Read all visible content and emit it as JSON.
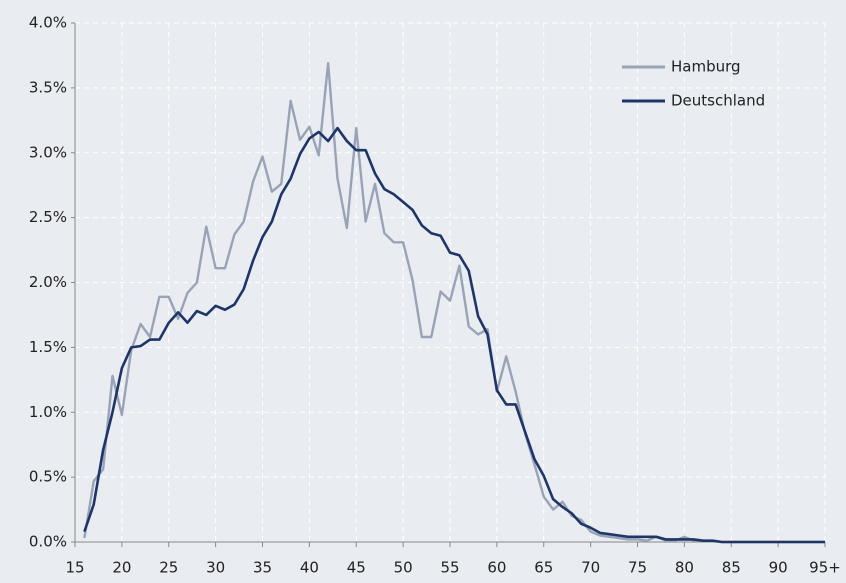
{
  "chart_data": {
    "type": "line",
    "x": [
      16,
      17,
      18,
      19,
      20,
      21,
      22,
      23,
      24,
      25,
      26,
      27,
      28,
      29,
      30,
      31,
      32,
      33,
      34,
      35,
      36,
      37,
      38,
      39,
      40,
      41,
      42,
      43,
      44,
      45,
      46,
      47,
      48,
      49,
      50,
      51,
      52,
      53,
      54,
      55,
      56,
      57,
      58,
      59,
      60,
      61,
      62,
      63,
      64,
      65,
      66,
      67,
      68,
      69,
      70,
      71,
      72,
      73,
      74,
      75,
      76,
      77,
      78,
      79,
      80,
      81,
      82,
      83,
      84,
      85,
      86,
      87,
      88,
      89,
      90,
      91,
      92,
      93,
      94,
      95
    ],
    "series": [
      {
        "name": "Hamburg",
        "color": "#9aa3b6",
        "values": [
          0.03,
          0.47,
          0.56,
          1.28,
          0.98,
          1.48,
          1.68,
          1.58,
          1.89,
          1.89,
          1.72,
          1.92,
          2.0,
          2.43,
          2.11,
          2.11,
          2.37,
          2.47,
          2.78,
          2.97,
          2.7,
          2.76,
          3.4,
          3.1,
          3.2,
          2.98,
          3.69,
          2.8,
          2.42,
          3.19,
          2.47,
          2.76,
          2.38,
          2.31,
          2.31,
          2.02,
          1.58,
          1.58,
          1.93,
          1.86,
          2.13,
          1.66,
          1.6,
          1.64,
          1.16,
          1.43,
          1.16,
          0.84,
          0.6,
          0.35,
          0.25,
          0.31,
          0.2,
          0.17,
          0.08,
          0.05,
          0.04,
          0.03,
          0.02,
          0.02,
          0.01,
          0.04,
          0.01,
          0.01,
          0.04,
          0.01,
          0.01,
          0.01,
          0,
          0,
          0,
          0,
          0,
          0,
          0,
          0,
          0,
          0,
          0,
          0
        ]
      },
      {
        "name": "Deutschland",
        "color": "#1f3567",
        "values": [
          0.08,
          0.29,
          0.71,
          1.0,
          1.34,
          1.5,
          1.51,
          1.56,
          1.56,
          1.69,
          1.77,
          1.69,
          1.78,
          1.75,
          1.82,
          1.79,
          1.83,
          1.95,
          2.17,
          2.35,
          2.47,
          2.68,
          2.8,
          2.99,
          3.11,
          3.16,
          3.09,
          3.19,
          3.09,
          3.02,
          3.02,
          2.84,
          2.72,
          2.68,
          2.62,
          2.56,
          2.44,
          2.38,
          2.36,
          2.23,
          2.21,
          2.09,
          1.74,
          1.6,
          1.17,
          1.06,
          1.06,
          0.85,
          0.64,
          0.51,
          0.33,
          0.27,
          0.22,
          0.14,
          0.11,
          0.07,
          0.06,
          0.05,
          0.04,
          0.04,
          0.04,
          0.04,
          0.02,
          0.02,
          0.02,
          0.02,
          0.01,
          0.01,
          0,
          0,
          0,
          0,
          0,
          0,
          0,
          0,
          0,
          0,
          0,
          0
        ]
      }
    ],
    "xlim": [
      15,
      95
    ],
    "xticks": [
      15,
      20,
      25,
      30,
      35,
      40,
      45,
      50,
      55,
      60,
      65,
      70,
      75,
      80,
      85,
      90,
      {
        "value": 95,
        "label": "95+"
      }
    ],
    "ylim": [
      0,
      4
    ],
    "yticks": [
      {
        "value": 0,
        "label": "0.0%"
      },
      {
        "value": 0.5,
        "label": "0.5%"
      },
      {
        "value": 1,
        "label": "1.0%"
      },
      {
        "value": 1.5,
        "label": "1.5%"
      },
      {
        "value": 2,
        "label": "2.0%"
      },
      {
        "value": 2.5,
        "label": "2.5%"
      },
      {
        "value": 3,
        "label": "3.0%"
      },
      {
        "value": 3.5,
        "label": "3.5%"
      },
      {
        "value": 4,
        "label": "4.0%"
      }
    ],
    "grid": true,
    "legend": "upper-right"
  }
}
